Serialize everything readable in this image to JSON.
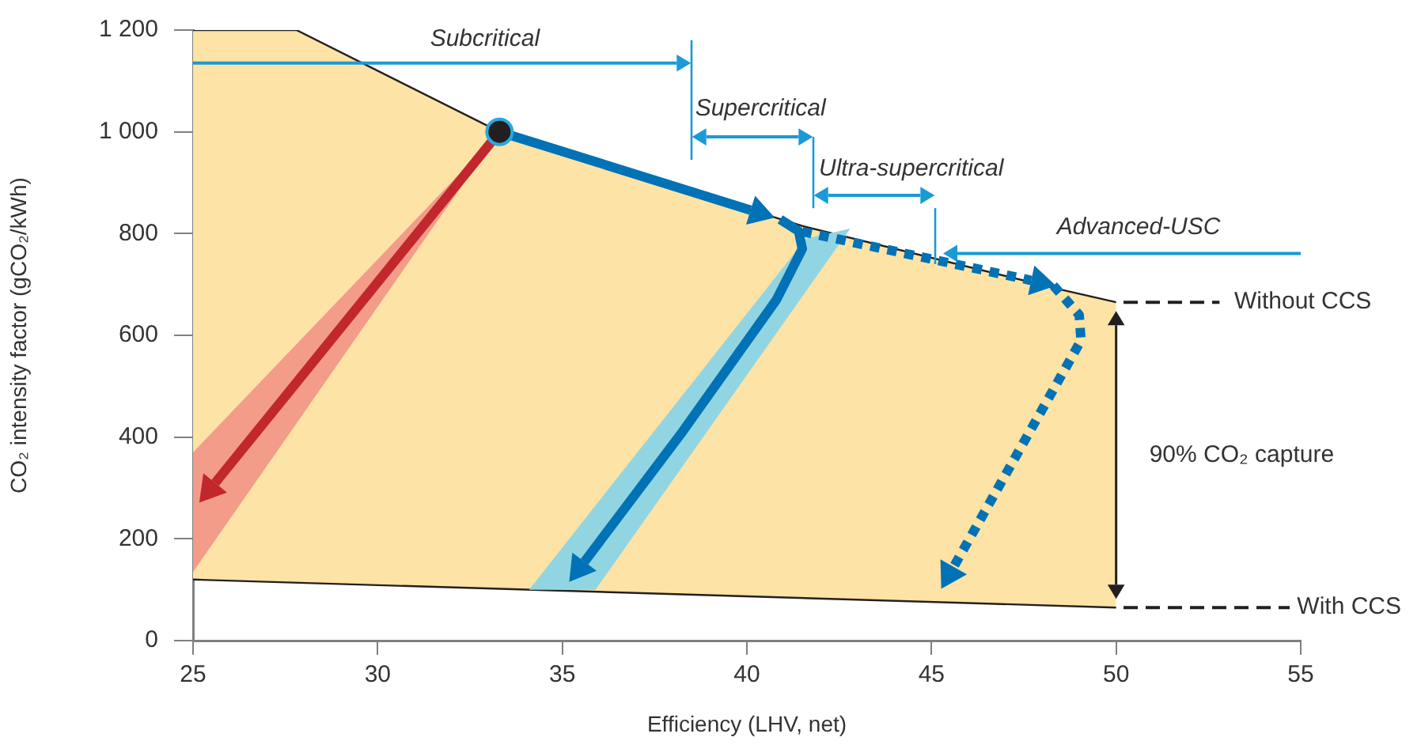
{
  "chart_data": {
    "type": "area",
    "xlabel": "Efficiency (LHV, net)",
    "ylabel": "CO₂ intensity factor (gCO₂/kWh)",
    "xlim": [
      25,
      55
    ],
    "ylim": [
      0,
      1200
    ],
    "xticks": [
      25,
      30,
      35,
      40,
      45,
      50,
      55
    ],
    "yticks": [
      0,
      200,
      400,
      600,
      800,
      {
        "value": 1000,
        "label": "1 000"
      },
      {
        "value": 1200,
        "label": "1 200"
      }
    ],
    "grid": false,
    "legend": false,
    "series": [
      {
        "color": "#fde3a5",
        "x": [
          25,
          27.8,
          33.3,
          41.5,
          48.5,
          50
        ],
        "values": [
          1200,
          1200,
          1000,
          815,
          690,
          665
        ]
      },
      {
        "type": "line",
        "color": "#231f20",
        "x": [
          25,
          50
        ],
        "values": [
          120,
          65
        ]
      }
    ],
    "annotations": [
      "Subcritical",
      "Supercritical",
      "Ultra-supercritical",
      "Advanced-USC",
      "Without CCS",
      "With CCS",
      "90% CO₂ capture"
    ]
  }
}
